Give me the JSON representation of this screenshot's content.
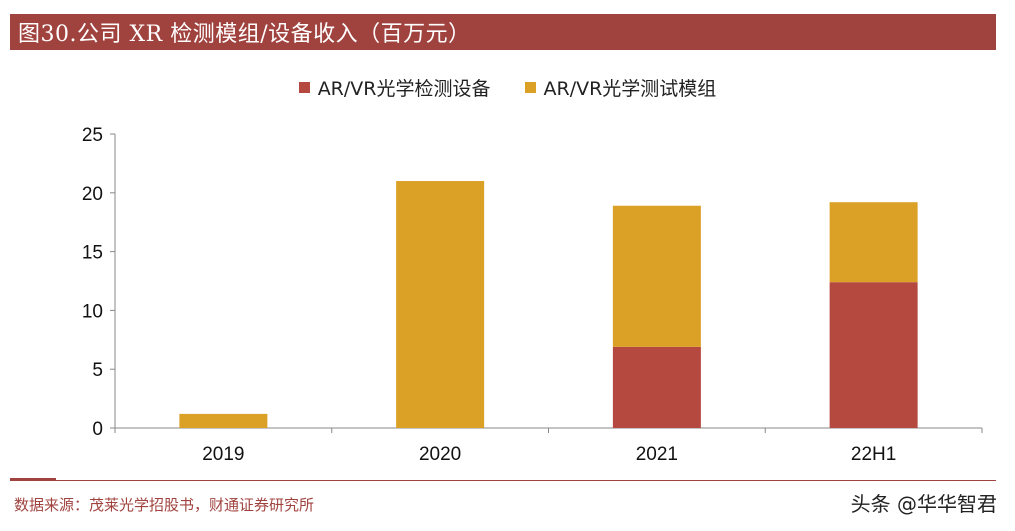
{
  "header": {
    "title": "图30.公司 XR 检测模组/设备收入（百万元）"
  },
  "footer": {
    "source": "数据来源：茂莱光学招股书，财通证券研究所",
    "watermark": "头条 @华华智君"
  },
  "colors": {
    "accent": "#a0433f",
    "series_equipment": "#b5483f",
    "series_module": "#dba026"
  },
  "chart_data": {
    "type": "bar",
    "stacked": true,
    "title": "",
    "xlabel": "",
    "ylabel": "",
    "categories": [
      "2019",
      "2020",
      "2021",
      "22H1"
    ],
    "series": [
      {
        "name": "AR/VR光学检测设备",
        "color": "#b5483f",
        "values": [
          0,
          0,
          6.9,
          12.4
        ]
      },
      {
        "name": "AR/VR光学测试模组",
        "color": "#dba026",
        "values": [
          1.2,
          21.0,
          12.0,
          6.8
        ]
      }
    ],
    "ylim": [
      0,
      25
    ],
    "yticks": [
      0,
      5,
      10,
      15,
      20,
      25
    ],
    "grid": false,
    "legend_position": "top-center"
  }
}
